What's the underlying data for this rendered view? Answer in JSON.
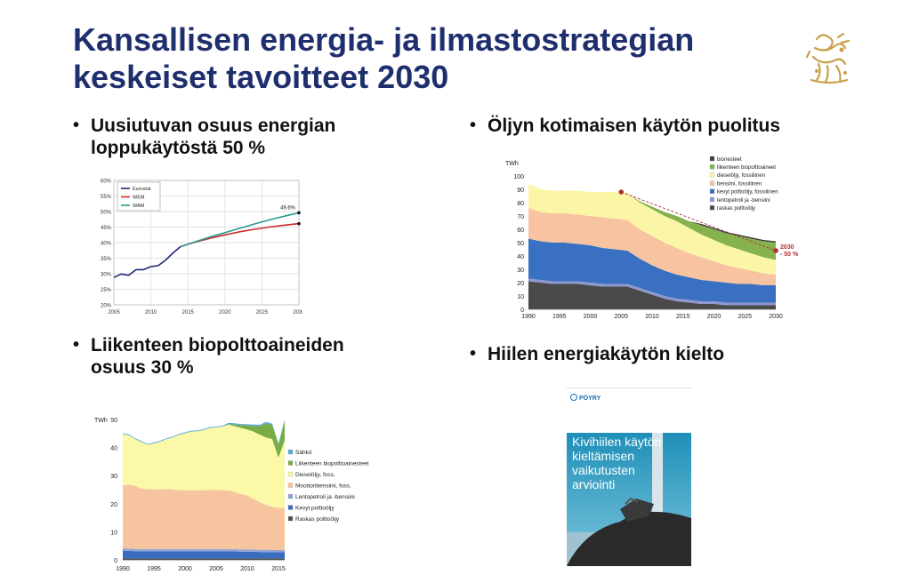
{
  "title_line1": "Kansallisen energia- ja ilmastostrategian",
  "title_line2": "keskeiset tavoitteet 2030",
  "colors": {
    "title": "#1f2f6e",
    "crest": "#c9a04a"
  },
  "bullets": {
    "b1_line1": "Uusiutuvan osuus energian",
    "b1_line2": "loppukäytöstä 50 %",
    "b2": "Öljyn kotimaisen käytön puolitus",
    "b3_line1": "Liikenteen biopolttoaineiden",
    "b3_line2": "osuus 30 %",
    "b4": "Hiilen energiakäytön kielto"
  },
  "cover": {
    "brand": "PÖYRY",
    "title_lines": [
      "Kivihiilen käytön",
      "kieltämisen",
      "vaikutusten",
      "arviointi"
    ]
  },
  "chart_data": [
    {
      "id": "renewable-share",
      "type": "line",
      "xlim": [
        2005,
        2030
      ],
      "ylim": [
        20,
        60
      ],
      "x_ticks": [
        2005,
        2010,
        2015,
        2020,
        2025,
        2030
      ],
      "y_ticks": [
        "20%",
        "25%",
        "30%",
        "35%",
        "40%",
        "45%",
        "50%",
        "55%",
        "60%"
      ],
      "legend": [
        "Eurostat",
        "WEM",
        "WAM"
      ],
      "annotation": "49.6%",
      "series": [
        {
          "name": "Eurostat",
          "color": "#1e2a7a",
          "x": [
            2005,
            2006,
            2007,
            2008,
            2009,
            2010,
            2011,
            2012,
            2013,
            2014
          ],
          "y": [
            28.8,
            29.9,
            29.5,
            31.3,
            31.3,
            32.3,
            32.6,
            34.4,
            36.7,
            38.7
          ]
        },
        {
          "name": "WEM",
          "color": "#cc2a2a",
          "x": [
            2014,
            2016,
            2018,
            2020,
            2022,
            2024,
            2026,
            2028,
            2030
          ],
          "y": [
            38.7,
            40.2,
            41.4,
            42.5,
            43.5,
            44.3,
            45.0,
            45.6,
            46.1
          ]
        },
        {
          "name": "WAM",
          "color": "#2a9a8e",
          "x": [
            2014,
            2016,
            2018,
            2020,
            2022,
            2024,
            2026,
            2028,
            2030
          ],
          "y": [
            38.7,
            40.3,
            41.8,
            43.2,
            44.6,
            46.0,
            47.3,
            48.5,
            49.6
          ]
        }
      ]
    },
    {
      "id": "oil-use",
      "type": "area",
      "ylabel": "TWh",
      "xlim": [
        1990,
        2030
      ],
      "ylim": [
        0,
        100
      ],
      "x_ticks": [
        1990,
        1995,
        2000,
        2005,
        2010,
        2015,
        2020,
        2025,
        2030
      ],
      "y_ticks": [
        0,
        10,
        20,
        30,
        40,
        50,
        60,
        70,
        80,
        90,
        100
      ],
      "annotation": [
        "2030",
        "- 50 %"
      ],
      "x": [
        1990,
        1992,
        1994,
        1996,
        1998,
        2000,
        2002,
        2004,
        2006,
        2008,
        2010,
        2012,
        2014,
        2016,
        2018,
        2020,
        2022,
        2024,
        2026,
        2028,
        2030
      ],
      "series": [
        {
          "name": "raskas polttoöljy",
          "color": "#4a4a4a",
          "values": [
            21,
            20,
            19,
            19,
            19,
            18,
            17,
            17,
            17,
            14,
            11,
            8,
            6,
            5,
            4,
            4,
            3,
            3,
            3,
            3,
            3
          ]
        },
        {
          "name": "lentopetroli ja -bensiini",
          "color": "#8f98cf",
          "values": [
            2,
            2,
            2,
            2,
            2,
            2,
            2,
            2,
            2,
            2,
            2,
            2,
            2,
            2,
            2,
            2,
            2,
            2,
            2,
            2,
            2
          ]
        },
        {
          "name": "kevyt polttoöljy, fossiilinen",
          "color": "#3a70c2",
          "values": [
            30,
            29,
            29,
            29,
            28,
            28,
            27,
            26,
            25,
            22,
            20,
            19,
            18,
            17,
            16,
            15,
            15,
            14,
            14,
            13,
            13
          ]
        },
        {
          "name": "bensiini, fossiilinen",
          "color": "#f8c3a0",
          "values": [
            23,
            22,
            22,
            22,
            22,
            22,
            23,
            23,
            23,
            22,
            22,
            21,
            20,
            18,
            17,
            15,
            13,
            12,
            10,
            9,
            8
          ]
        },
        {
          "name": "dieselöljy, fossiilinen",
          "color": "#fbf6a6",
          "values": [
            18,
            17,
            17,
            17,
            18,
            18,
            19,
            20,
            20,
            20,
            20,
            20,
            20,
            19,
            17,
            16,
            15,
            14,
            13,
            12,
            11
          ]
        },
        {
          "name": "liikenteen biopolttoaineet",
          "color": "#86b24e",
          "values": [
            0,
            0,
            0,
            0,
            0,
            0,
            0,
            0,
            0,
            1,
            2,
            3,
            4,
            5,
            7,
            8,
            9,
            10,
            11,
            12,
            13
          ]
        },
        {
          "name": "bionesteet",
          "color": "#3c3c3c",
          "values": [
            0,
            0,
            0,
            0,
            0,
            0,
            0,
            0,
            0,
            0,
            0,
            0,
            0,
            0,
            1,
            1,
            1,
            1,
            1,
            1,
            1
          ]
        }
      ]
    },
    {
      "id": "transport-fuels",
      "type": "area",
      "ylabel": "TWh",
      "xlim": [
        1990,
        2016
      ],
      "ylim": [
        0,
        50
      ],
      "x_ticks": [
        1990,
        1995,
        2000,
        2005,
        2010,
        2015
      ],
      "y_ticks": [
        0,
        10,
        20,
        30,
        40,
        50
      ],
      "x": [
        1990,
        1991,
        1992,
        1993,
        1994,
        1995,
        1996,
        1997,
        1998,
        1999,
        2000,
        2001,
        2002,
        2003,
        2004,
        2005,
        2006,
        2007,
        2008,
        2009,
        2010,
        2011,
        2012,
        2013,
        2014,
        2015,
        2016
      ],
      "series": [
        {
          "name": "Raskas polttoöljy",
          "color": "#4d4d4d",
          "values": [
            0.5,
            0.5,
            0.5,
            0.5,
            0.5,
            0.5,
            0.5,
            0.5,
            0.5,
            0.5,
            0.5,
            0.5,
            0.5,
            0.5,
            0.5,
            0.5,
            0.5,
            0.5,
            0.5,
            0.5,
            0.5,
            0.5,
            0.5,
            0.5,
            0.5,
            0.5,
            0.5
          ]
        },
        {
          "name": "Kevyt polttoöljy",
          "color": "#3a6dbf",
          "values": [
            2.8,
            2.7,
            2.6,
            2.6,
            2.6,
            2.6,
            2.6,
            2.6,
            2.6,
            2.6,
            2.6,
            2.6,
            2.6,
            2.6,
            2.6,
            2.6,
            2.6,
            2.6,
            2.5,
            2.4,
            2.4,
            2.4,
            2.3,
            2.3,
            2.2,
            2.2,
            2.2
          ]
        },
        {
          "name": "Lentopetroli ja -bensiini",
          "color": "#8fa3d6",
          "values": [
            0.8,
            0.8,
            0.8,
            0.8,
            0.8,
            0.8,
            0.8,
            0.8,
            0.8,
            0.8,
            0.8,
            0.8,
            0.8,
            0.8,
            0.8,
            0.8,
            0.8,
            0.8,
            0.8,
            0.8,
            0.8,
            0.8,
            0.8,
            0.8,
            0.8,
            0.8,
            0.8
          ]
        },
        {
          "name": "Moottoribensiini, foss.",
          "color": "#f7c4a0",
          "values": [
            22.5,
            22.8,
            22.5,
            21.5,
            21.3,
            21.3,
            21.2,
            21.4,
            21.2,
            21.0,
            20.9,
            20.9,
            20.9,
            20.9,
            21.0,
            21.0,
            20.9,
            20.9,
            20.3,
            19.8,
            19.2,
            18.0,
            17.0,
            16.0,
            15.5,
            15.0,
            15.0
          ]
        },
        {
          "name": "Dieselöljy, foss.",
          "color": "#fbf9a8",
          "values": [
            18.2,
            17.6,
            16.6,
            16.6,
            15.8,
            16.3,
            17.0,
            17.7,
            18.5,
            19.6,
            20.3,
            20.9,
            21.0,
            21.5,
            22.1,
            22.3,
            22.7,
            23.4,
            23.5,
            23.5,
            23.5,
            24.0,
            24.0,
            24.0,
            24.0,
            18.0,
            24.0
          ]
        },
        {
          "name": "Liikenteen biopolttoainesteet",
          "color": "#78ad45",
          "values": [
            0,
            0,
            0,
            0,
            0,
            0,
            0,
            0,
            0,
            0,
            0,
            0,
            0,
            0,
            0,
            0,
            0,
            0.2,
            0.6,
            1.0,
            1.5,
            2.0,
            3.0,
            5.0,
            5.0,
            4.5,
            7.0
          ]
        },
        {
          "name": "Sähkö",
          "color": "#57a8d8",
          "values": [
            0.3,
            0.3,
            0.3,
            0.3,
            0.3,
            0.3,
            0.3,
            0.3,
            0.3,
            0.3,
            0.3,
            0.3,
            0.3,
            0.3,
            0.3,
            0.3,
            0.3,
            0.4,
            0.4,
            0.4,
            0.4,
            0.5,
            0.5,
            0.5,
            0.5,
            0.5,
            0.5
          ]
        }
      ]
    }
  ]
}
